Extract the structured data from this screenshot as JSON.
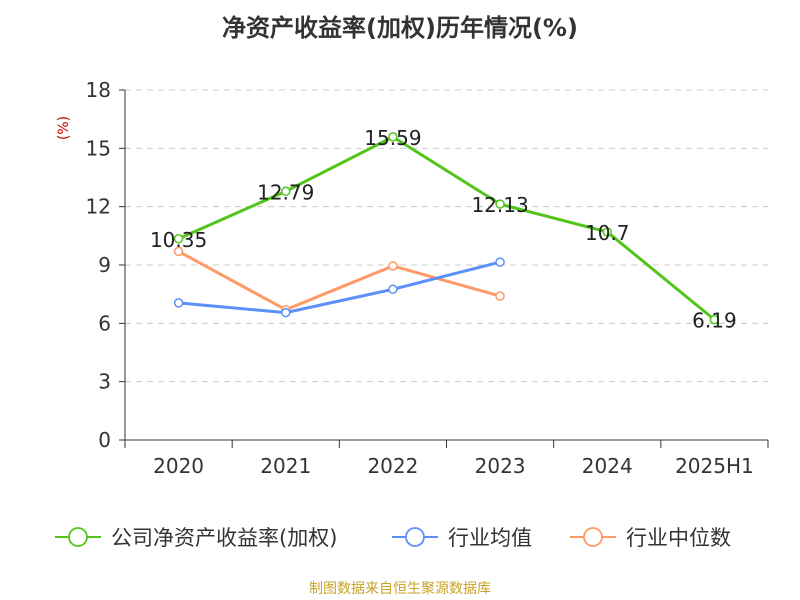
{
  "title": "净资产收益率(加权)历年情况(%)",
  "source_note": "制图数据来自恒生聚源数据库",
  "colors": {
    "company": "#52c41a",
    "industry_avg": "#5b8ff9",
    "industry_median": "#ff9966",
    "unit_label": "#cc0000",
    "footer": "#c9a227"
  },
  "chart_data": {
    "type": "line",
    "categories": [
      "2020",
      "2021",
      "2022",
      "2023",
      "2024",
      "2025H1"
    ],
    "ylabel": "(%)",
    "ylim": [
      0,
      18
    ],
    "yticks": [
      0,
      3,
      6,
      9,
      12,
      15,
      18
    ],
    "grid": true,
    "legend_position": "bottom",
    "series": [
      {
        "name": "公司净资产收益率(加权)",
        "color_key": "company",
        "values": [
          10.35,
          12.79,
          15.59,
          12.13,
          10.7,
          6.19
        ],
        "labels": [
          "10.35",
          "12.79",
          "15.59",
          "12.13",
          "10.7",
          "6.19"
        ],
        "show_labels": true
      },
      {
        "name": "行业均值",
        "color_key": "industry_avg",
        "values": [
          7.05,
          6.55,
          7.75,
          9.15,
          null,
          null
        ],
        "show_labels": false
      },
      {
        "name": "行业中位数",
        "color_key": "industry_median",
        "values": [
          9.7,
          6.7,
          8.95,
          7.4,
          null,
          null
        ],
        "show_labels": false
      }
    ]
  }
}
